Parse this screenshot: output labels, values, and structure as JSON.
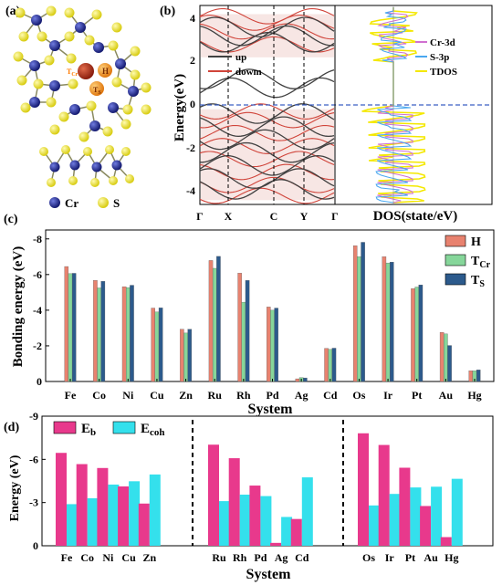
{
  "panel_a": {
    "label": "(a)",
    "site_labels": [
      "T_Cr",
      "H",
      "T_S"
    ],
    "site_label_texts": [
      "T",
      "H",
      "T"
    ],
    "legend": [
      {
        "name": "Cr",
        "color": "#1c2699"
      },
      {
        "name": "S",
        "color": "#f2ec1c"
      }
    ]
  },
  "panel_b": {
    "label": "(b)",
    "band_ylabel": "Energy(eV)",
    "band_yticks": [
      "4",
      "2",
      "0",
      "-2",
      "-4"
    ],
    "kpoints": [
      "Γ",
      "X",
      "C",
      "Y",
      "Γ"
    ],
    "band_legend": [
      {
        "name": "up",
        "color": "#404040"
      },
      {
        "name": "dowm",
        "color": "#d0443a"
      }
    ],
    "dos_xlabel": "DOS(state/eV)",
    "dos_legend": [
      {
        "name": "Cr-3d",
        "color": "#d070d0"
      },
      {
        "name": "S-3p",
        "color": "#4aa8f0"
      },
      {
        "name": "TDOS",
        "color": "#f4e800"
      }
    ]
  },
  "chart_data": [
    {
      "type": "bar",
      "panel": "(c)",
      "xlabel": "System",
      "ylabel": "Bonding energy (eV)",
      "ylim": [
        0,
        -8.5
      ],
      "yticks": [
        -8,
        -6,
        -4,
        -2,
        0
      ],
      "ytick_labels": [
        "-8",
        "-6",
        "-4",
        "-2",
        "0"
      ],
      "legend_position": "top-right",
      "categories": [
        "Fe",
        "Co",
        "Ni",
        "Cu",
        "Zn",
        "Ru",
        "Rh",
        "Pd",
        "Ag",
        "Cd",
        "Os",
        "Ir",
        "Pt",
        "Au",
        "Hg"
      ],
      "series": [
        {
          "name": "H",
          "name_main": "H",
          "name_sub": "",
          "color": "#e8826f",
          "values": [
            -6.45,
            -5.67,
            -5.32,
            -4.12,
            -2.93,
            -6.79,
            -6.08,
            -4.18,
            -0.15,
            -1.86,
            -7.62,
            -7.0,
            -5.21,
            -2.76,
            -0.6
          ]
        },
        {
          "name": "T_Cr",
          "name_main": "T",
          "name_sub": "Cr",
          "color": "#86d69a",
          "values": [
            -6.05,
            -5.25,
            -5.27,
            -3.9,
            -2.72,
            -6.35,
            -4.45,
            -4.0,
            -0.22,
            -1.8,
            -7.0,
            -6.65,
            -5.3,
            -2.67,
            -0.6
          ]
        },
        {
          "name": "T_S",
          "name_main": "T",
          "name_sub": "S",
          "color": "#2c5a8c",
          "values": [
            -6.07,
            -5.62,
            -5.4,
            -4.13,
            -2.93,
            -7.02,
            -5.67,
            -4.12,
            -0.2,
            -1.87,
            -7.81,
            -6.7,
            -5.42,
            -2.02,
            -0.65
          ]
        }
      ]
    },
    {
      "type": "bar",
      "panel": "(d)",
      "xlabel": "System",
      "ylabel": "Energy (eV)",
      "ylim": [
        0,
        -9
      ],
      "yticks": [
        -9,
        -6,
        -3,
        0
      ],
      "ytick_labels": [
        "-9",
        "-6",
        "-3",
        "0"
      ],
      "legend_position": "top-left",
      "groups": [
        {
          "categories": [
            "Fe",
            "Co",
            "Ni",
            "Cu",
            "Zn"
          ]
        },
        {
          "categories": [
            "Ru",
            "Rh",
            "Pd",
            "Ag",
            "Cd"
          ]
        },
        {
          "categories": [
            "Os",
            "Ir",
            "Pt",
            "Au",
            "Hg"
          ]
        }
      ],
      "series": [
        {
          "name": "E_b",
          "name_main": "E",
          "name_sub": "b",
          "color": "#e8398c",
          "values": [
            -6.45,
            -5.67,
            -5.4,
            -4.12,
            -2.93,
            -7.02,
            -6.08,
            -4.18,
            -0.2,
            -1.86,
            -7.81,
            -7.0,
            -5.42,
            -2.76,
            -0.6
          ]
        },
        {
          "name": "E_coh",
          "name_main": "E",
          "name_sub": "coh",
          "color": "#34e0ec",
          "values": [
            -2.89,
            -3.3,
            -4.25,
            -4.48,
            -4.95,
            -3.1,
            -3.55,
            -3.45,
            -2.0,
            -4.75,
            -2.8,
            -3.6,
            -4.05,
            -4.1,
            -4.65
          ]
        }
      ]
    }
  ]
}
